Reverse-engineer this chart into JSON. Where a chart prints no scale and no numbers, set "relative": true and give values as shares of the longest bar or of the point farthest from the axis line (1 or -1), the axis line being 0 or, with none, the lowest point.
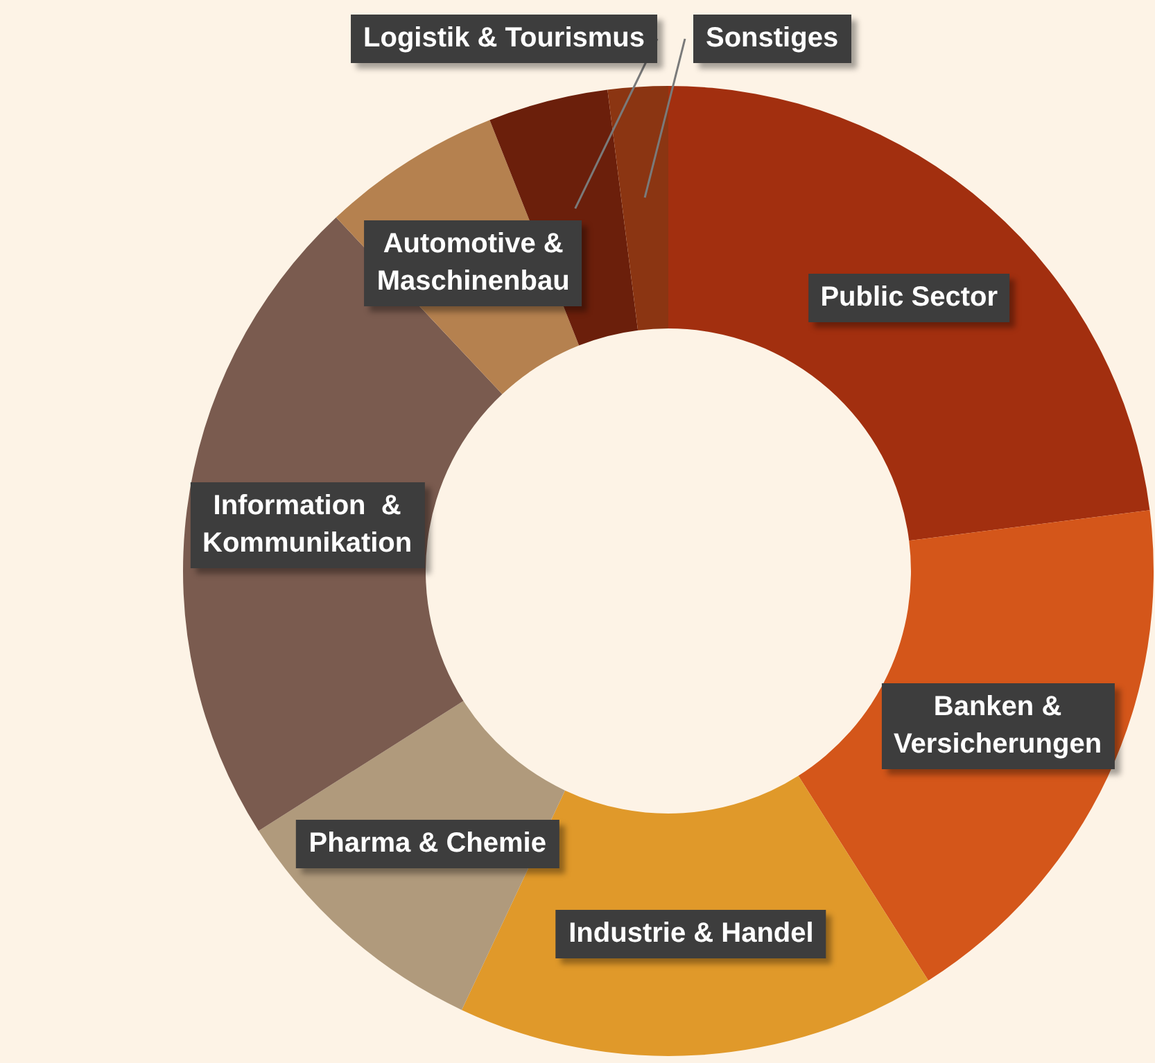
{
  "chart_data": {
    "type": "donut",
    "relative": true,
    "categories": [
      "Public Sector",
      "Banken &\nVersicherungen",
      "Industrie & Handel",
      "Pharma & Chemie",
      "Information  &\nKommunikation",
      "Automotive &\nMaschinenbau",
      "Logistik & Tourismus",
      "Sonstiges"
    ],
    "values": [
      23,
      18,
      16,
      9,
      22,
      6,
      4,
      2
    ],
    "colors": [
      "#a22f0f",
      "#d4561a",
      "#e0992a",
      "#b09a7c",
      "#7a5b4f",
      "#b5814f",
      "#6b1f0b",
      "#8b3512"
    ]
  }
}
